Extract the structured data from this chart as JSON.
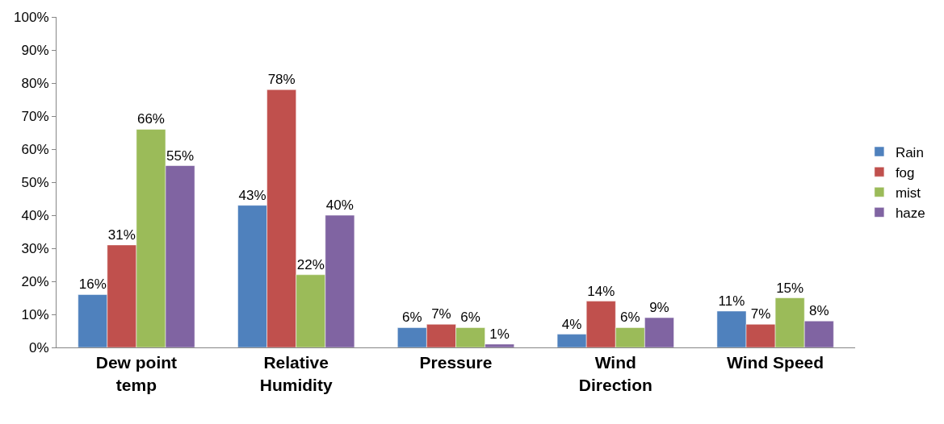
{
  "chart_data": {
    "type": "bar",
    "categories": [
      "Dew point temp",
      "Relative Humidity",
      "Pressure",
      "Wind Direction",
      "Wind Speed"
    ],
    "series": [
      {
        "name": "Rain",
        "color": "#4f81bd",
        "values": [
          16,
          43,
          6,
          4,
          11
        ],
        "value_labels": [
          "16%",
          "43%",
          "6%",
          "4%",
          "11%"
        ]
      },
      {
        "name": "fog",
        "color": "#c0504d",
        "values": [
          31,
          78,
          7,
          14,
          7
        ],
        "value_labels": [
          "31%",
          "78%",
          "7%",
          "14%",
          "7%"
        ]
      },
      {
        "name": "mist",
        "color": "#9bbb59",
        "values": [
          66,
          22,
          6,
          6,
          15
        ],
        "value_labels": [
          "66%",
          "22%",
          "6%",
          "6%",
          "15%"
        ]
      },
      {
        "name": "haze",
        "color": "#8064a2",
        "values": [
          55,
          40,
          1,
          9,
          8
        ],
        "value_labels": [
          "55%",
          "40%",
          "1%",
          "9%",
          "8%"
        ]
      }
    ],
    "ylim": [
      0,
      100
    ],
    "yticks": [
      {
        "value": 0,
        "label": "0%"
      },
      {
        "value": 10,
        "label": "10%"
      },
      {
        "value": 20,
        "label": "20%"
      },
      {
        "value": 30,
        "label": "30%"
      },
      {
        "value": 40,
        "label": "40%"
      },
      {
        "value": 50,
        "label": "50%"
      },
      {
        "value": 60,
        "label": "60%"
      },
      {
        "value": 70,
        "label": "70%"
      },
      {
        "value": 80,
        "label": "80%"
      },
      {
        "value": 90,
        "label": "90%"
      },
      {
        "value": 100,
        "label": "100%"
      }
    ],
    "legend": "right"
  }
}
